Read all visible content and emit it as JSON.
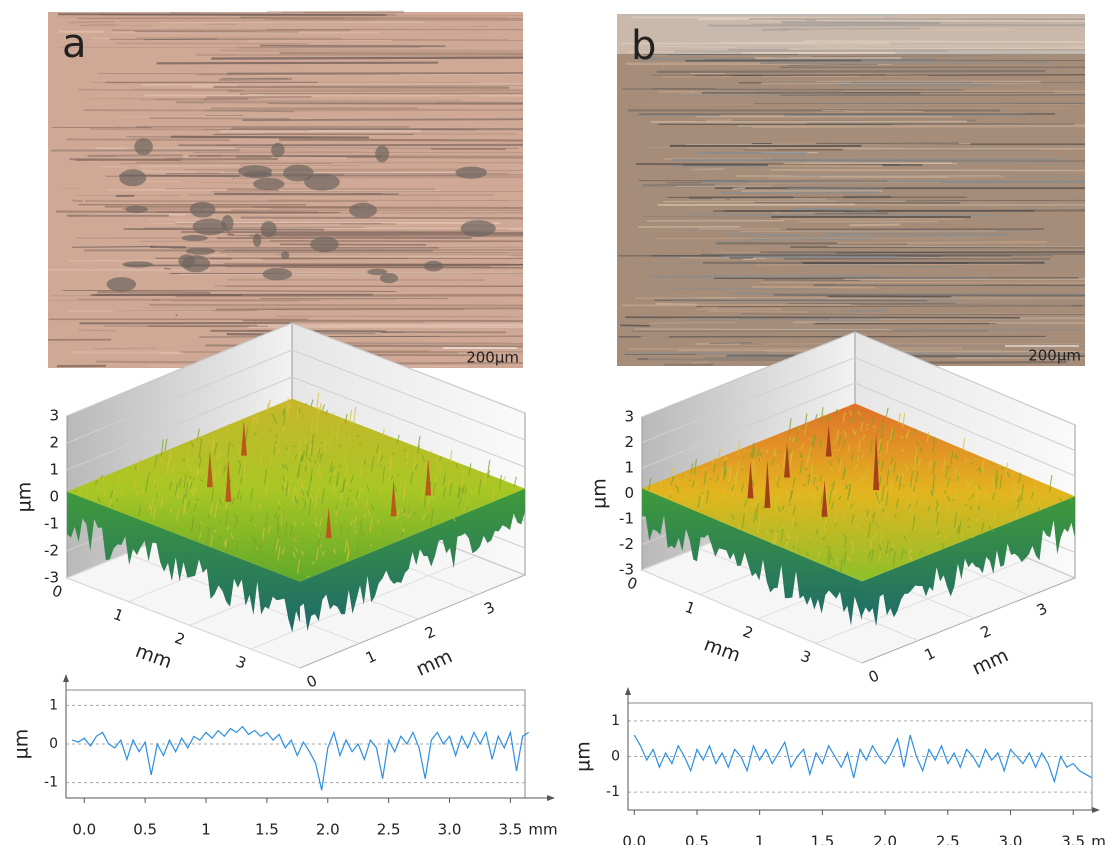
{
  "panels": [
    {
      "label": "a",
      "scale_bar": "200µm"
    },
    {
      "label": "b",
      "scale_bar": "200µm"
    }
  ],
  "chart_data": [
    {
      "type": "surface3d",
      "zlabel": "µm",
      "xlabel": "mm",
      "ylabel": "mm",
      "zlim": [
        -3,
        3
      ],
      "zticks": [
        -3,
        -2,
        -1,
        0,
        1,
        2,
        3
      ],
      "xlim": [
        0,
        3.8
      ],
      "xticks": [
        0,
        1,
        2,
        3
      ],
      "ylim": [
        0,
        3.8
      ],
      "yticks": [
        0,
        1,
        2,
        3
      ]
    },
    {
      "type": "line",
      "ylabel": "µm",
      "xlabel": "mm",
      "color": "#2b8fe3",
      "grid": true,
      "xlim": [
        -0.15,
        3.62
      ],
      "ylim": [
        -1.4,
        1.4
      ],
      "yticks": [
        -1,
        0,
        1
      ],
      "xticks": [
        {
          "value": 0,
          "label": "0.0"
        },
        0.5,
        1,
        1.5,
        {
          "value": 2,
          "label": "2.0"
        },
        2.5,
        {
          "value": 3,
          "label": "3.0"
        },
        3.5
      ],
      "x": [
        -0.1,
        -0.05,
        0,
        0.05,
        0.1,
        0.15,
        0.2,
        0.25,
        0.3,
        0.35,
        0.4,
        0.45,
        0.5,
        0.55,
        0.6,
        0.65,
        0.7,
        0.75,
        0.8,
        0.85,
        0.9,
        0.95,
        1,
        1.05,
        1.1,
        1.15,
        1.2,
        1.25,
        1.3,
        1.35,
        1.4,
        1.45,
        1.5,
        1.55,
        1.6,
        1.65,
        1.7,
        1.75,
        1.8,
        1.85,
        1.9,
        1.95,
        2,
        2.05,
        2.1,
        2.15,
        2.2,
        2.25,
        2.3,
        2.35,
        2.4,
        2.45,
        2.5,
        2.55,
        2.6,
        2.65,
        2.7,
        2.75,
        2.8,
        2.85,
        2.9,
        2.95,
        3,
        3.05,
        3.1,
        3.15,
        3.2,
        3.25,
        3.3,
        3.35,
        3.4,
        3.45,
        3.5,
        3.55,
        3.6,
        3.65
      ],
      "values": [
        0.1,
        0.05,
        0.15,
        -0.05,
        0.2,
        0.3,
        0.0,
        -0.1,
        0.1,
        -0.4,
        0.1,
        -0.2,
        0.05,
        -0.8,
        0.0,
        -0.3,
        0.1,
        -0.2,
        0.15,
        -0.1,
        0.2,
        0.1,
        0.3,
        0.15,
        0.35,
        0.2,
        0.4,
        0.3,
        0.45,
        0.25,
        0.35,
        0.2,
        0.3,
        0.1,
        0.25,
        -0.1,
        0.1,
        -0.3,
        0.05,
        -0.2,
        -0.5,
        -1.2,
        -0.1,
        0.3,
        -0.3,
        0.1,
        -0.2,
        0.0,
        -0.4,
        0.1,
        -0.1,
        -0.9,
        0.1,
        -0.2,
        0.2,
        0.0,
        0.3,
        -0.1,
        -0.9,
        0.1,
        0.3,
        0.0,
        0.2,
        -0.3,
        0.2,
        -0.1,
        0.3,
        0.0,
        0.3,
        -0.4,
        0.2,
        -0.1,
        0.3,
        -0.7,
        0.2,
        0.3
      ]
    },
    {
      "type": "surface3d",
      "zlabel": "µm",
      "xlabel": "mm",
      "ylabel": "mm",
      "zlim": [
        -3,
        3
      ],
      "zticks": [
        -3,
        -2,
        -1,
        0,
        1,
        2,
        3
      ],
      "xlim": [
        0,
        3.8
      ],
      "xticks": [
        0,
        1,
        2,
        3
      ],
      "ylim": [
        0,
        3.8
      ],
      "yticks": [
        0,
        1,
        2,
        3
      ]
    },
    {
      "type": "line",
      "ylabel": "µm",
      "xlabel": "mm",
      "color": "#2b8fe3",
      "grid": true,
      "xlim": [
        -0.05,
        3.65
      ],
      "ylim": [
        -1.5,
        1.5
      ],
      "yticks": [
        -1,
        0,
        1
      ],
      "xticks": [
        {
          "value": 0,
          "label": "0.0"
        },
        0.5,
        1,
        1.5,
        {
          "value": 2,
          "label": "2.0"
        },
        2.5,
        {
          "value": 3,
          "label": "3.0"
        },
        3.5
      ],
      "x": [
        0,
        0.05,
        0.1,
        0.15,
        0.2,
        0.25,
        0.3,
        0.35,
        0.4,
        0.45,
        0.5,
        0.55,
        0.6,
        0.65,
        0.7,
        0.75,
        0.8,
        0.85,
        0.9,
        0.95,
        1,
        1.05,
        1.1,
        1.15,
        1.2,
        1.25,
        1.3,
        1.35,
        1.4,
        1.45,
        1.5,
        1.55,
        1.6,
        1.65,
        1.7,
        1.75,
        1.8,
        1.85,
        1.9,
        1.95,
        2,
        2.05,
        2.1,
        2.15,
        2.2,
        2.25,
        2.3,
        2.35,
        2.4,
        2.45,
        2.5,
        2.55,
        2.6,
        2.65,
        2.7,
        2.75,
        2.8,
        2.85,
        2.9,
        2.95,
        3,
        3.05,
        3.1,
        3.15,
        3.2,
        3.25,
        3.3,
        3.35,
        3.4,
        3.45,
        3.5,
        3.55,
        3.6,
        3.65
      ],
      "values": [
        0.6,
        0.3,
        -0.1,
        0.2,
        -0.3,
        0.1,
        -0.2,
        0.3,
        0.0,
        -0.4,
        0.2,
        -0.1,
        0.3,
        -0.2,
        0.1,
        -0.3,
        0.2,
        0.0,
        -0.4,
        0.3,
        -0.1,
        0.2,
        -0.2,
        0.1,
        0.4,
        -0.3,
        0.0,
        0.2,
        -0.5,
        0.1,
        -0.2,
        0.3,
        0.0,
        -0.3,
        0.1,
        -0.6,
        0.2,
        -0.1,
        0.3,
        0.0,
        -0.2,
        0.1,
        0.5,
        -0.3,
        0.6,
        0.0,
        -0.4,
        0.2,
        -0.1,
        0.3,
        -0.2,
        0.1,
        -0.3,
        0.2,
        0.0,
        -0.3,
        0.2,
        -0.1,
        0.1,
        -0.4,
        0.2,
        0.0,
        -0.2,
        0.1,
        -0.3,
        0.1,
        -0.2,
        -0.7,
        0.0,
        -0.3,
        -0.2,
        -0.4,
        -0.5,
        -0.6
      ]
    }
  ]
}
